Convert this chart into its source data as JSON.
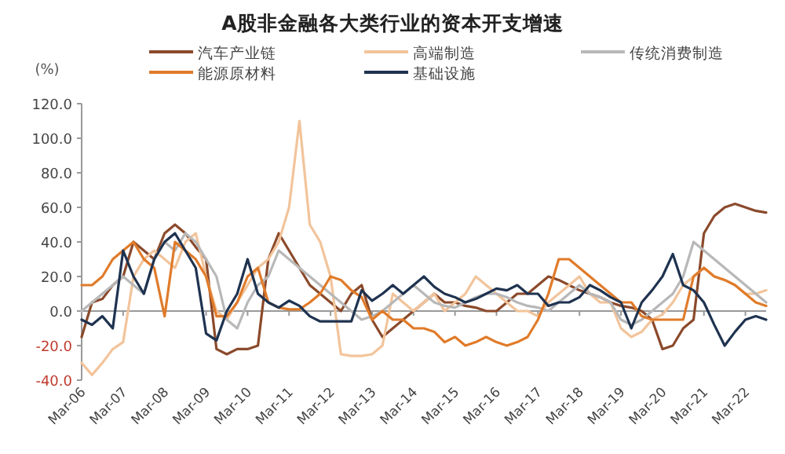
{
  "chart_data": {
    "type": "line",
    "title": "A股非金融各大类行业的资本开支增速",
    "ylabel": "(%)",
    "legend": "top",
    "categories": [
      "Mar-06",
      null,
      null,
      null,
      "Mar-07",
      null,
      null,
      null,
      "Mar-08",
      null,
      null,
      null,
      "Mar-09",
      null,
      null,
      null,
      "Mar-10",
      null,
      null,
      null,
      "Mar-11",
      null,
      null,
      null,
      "Mar-12",
      null,
      null,
      null,
      "Mar-13",
      null,
      null,
      null,
      "Mar-14",
      null,
      null,
      null,
      "Mar-15",
      null,
      null,
      null,
      "Mar-16",
      null,
      null,
      null,
      "Mar-17",
      null,
      null,
      null,
      "Mar-18",
      null,
      null,
      null,
      "Mar-19",
      null,
      null,
      null,
      "Mar-20",
      null,
      null,
      null,
      "Mar-21",
      null,
      null,
      null,
      "Mar-22",
      null,
      null
    ],
    "ylim": [
      -40,
      120
    ],
    "yticks": [
      {
        "value": -40,
        "label": "-40.0"
      },
      {
        "value": -20,
        "label": "-20.0"
      },
      {
        "value": 0,
        "label": "0.0"
      },
      {
        "value": 20,
        "label": "20.0"
      },
      {
        "value": 40,
        "label": "40.0"
      },
      {
        "value": 60,
        "label": "60.0"
      },
      {
        "value": 80,
        "label": "80.0"
      },
      {
        "value": 100,
        "label": "100.0"
      },
      {
        "value": 120,
        "label": "120.0"
      }
    ],
    "series": [
      {
        "name": "汽车产业链",
        "color": "#8b4a2b",
        "values": [
          -15,
          5,
          7,
          15,
          20,
          40,
          35,
          30,
          45,
          50,
          45,
          37,
          30,
          -22,
          -25,
          -22,
          -22,
          -20,
          30,
          45,
          35,
          25,
          15,
          10,
          5,
          0,
          10,
          15,
          -5,
          -15,
          -10,
          -5,
          0,
          5,
          10,
          5,
          5,
          3,
          2,
          0,
          0,
          5,
          10,
          10,
          15,
          20,
          18,
          15,
          12,
          10,
          8,
          5,
          3,
          2,
          0,
          -5,
          -22,
          -20,
          -10,
          -5,
          45,
          55,
          60,
          62,
          60,
          58,
          57
        ]
      },
      {
        "name": "高端制造",
        "color": "#f2c49b",
        "values": [
          -30,
          -37,
          -30,
          -22,
          -18,
          20,
          30,
          35,
          30,
          25,
          40,
          45,
          20,
          0,
          -5,
          5,
          15,
          25,
          30,
          40,
          60,
          110,
          50,
          40,
          20,
          -25,
          -26,
          -26,
          -25,
          -20,
          10,
          5,
          0,
          5,
          10,
          0,
          5,
          10,
          20,
          15,
          10,
          5,
          0,
          0,
          -3,
          5,
          10,
          15,
          20,
          10,
          5,
          5,
          -10,
          -15,
          -12,
          -5,
          -2,
          5,
          15,
          20,
          25,
          20,
          18,
          15,
          10,
          10,
          12
        ]
      },
      {
        "name": "传统消费制造",
        "color": "#b8b8b8",
        "values": [
          0,
          5,
          10,
          15,
          20,
          15,
          10,
          30,
          40,
          35,
          45,
          40,
          30,
          20,
          -5,
          -10,
          5,
          15,
          20,
          35,
          30,
          25,
          20,
          15,
          10,
          5,
          0,
          -5,
          -3,
          0,
          5,
          10,
          15,
          10,
          5,
          3,
          2,
          5,
          8,
          10,
          10,
          8,
          5,
          3,
          2,
          0,
          5,
          10,
          15,
          10,
          8,
          5,
          -5,
          -8,
          -5,
          0,
          5,
          10,
          20,
          40,
          35,
          30,
          25,
          20,
          15,
          10,
          5
        ]
      },
      {
        "name": "能源原材料",
        "color": "#e07b2a",
        "values": [
          15,
          15,
          20,
          30,
          35,
          40,
          30,
          25,
          -3,
          40,
          35,
          30,
          20,
          -3,
          -3,
          5,
          20,
          25,
          5,
          2,
          1,
          1,
          5,
          10,
          20,
          18,
          12,
          8,
          -5,
          0,
          -5,
          -5,
          -10,
          -10,
          -12,
          -18,
          -15,
          -20,
          -18,
          -15,
          -18,
          -20,
          -18,
          -15,
          -5,
          10,
          30,
          30,
          25,
          20,
          15,
          10,
          5,
          5,
          -3,
          -5,
          -5,
          -5,
          -5,
          20,
          25,
          20,
          18,
          15,
          10,
          5,
          3
        ]
      },
      {
        "name": "基础设施",
        "color": "#1f3350",
        "values": [
          -5,
          -8,
          -3,
          -10,
          35,
          20,
          10,
          30,
          40,
          45,
          35,
          25,
          -13,
          -17,
          0,
          10,
          30,
          10,
          5,
          2,
          6,
          3,
          -3,
          -6,
          -6,
          -6,
          -6,
          12,
          6,
          10,
          15,
          10,
          15,
          20,
          14,
          10,
          8,
          5,
          7,
          10,
          13,
          12,
          15,
          10,
          10,
          3,
          5,
          5,
          8,
          15,
          12,
          8,
          5,
          -10,
          5,
          12,
          20,
          33,
          15,
          12,
          5,
          -8,
          -20,
          -12,
          -5,
          -3,
          -5
        ]
      }
    ]
  }
}
